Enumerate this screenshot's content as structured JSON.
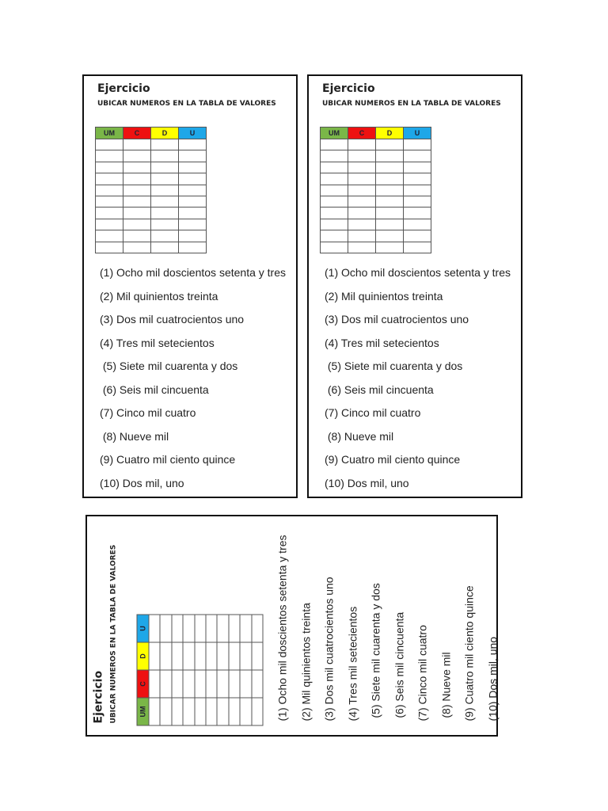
{
  "title": "Ejercicio",
  "subtitle": "UBICAR NUMEROS EN LA TABLA DE VALORES",
  "headers": [
    {
      "label": "UM",
      "color": "#7ab648"
    },
    {
      "label": "C",
      "color": "#ee1111"
    },
    {
      "label": "D",
      "color": "#ffff00"
    },
    {
      "label": "U",
      "color": "#1ea7e8"
    }
  ],
  "items": [
    "(1) Ocho mil doscientos setenta y tres",
    "(2) Mil quinientos treinta",
    "(3) Dos mil cuatrocientos uno",
    "(4) Tres mil setecientos",
    " (5) Siete mil cuarenta y dos",
    " (6) Seis mil cincuenta",
    "(7) Cinco mil cuatro",
    " (8) Nueve mil",
    "(9) Cuatro mil ciento quince",
    "(10) Dos mil, uno"
  ]
}
